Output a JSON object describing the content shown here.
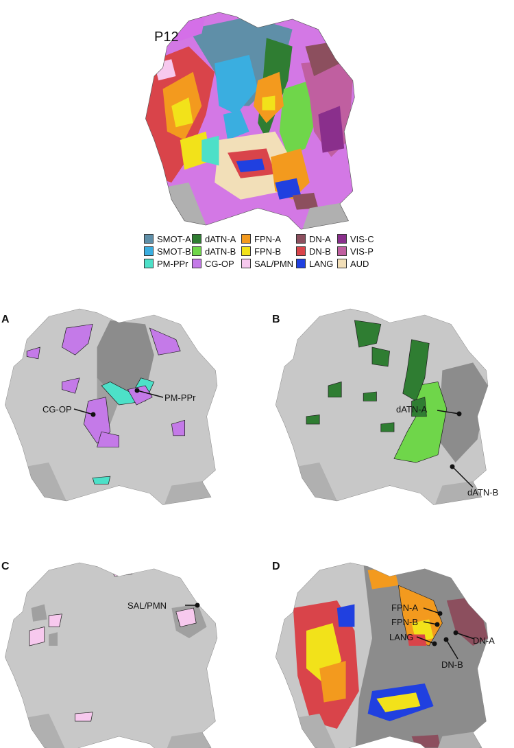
{
  "top_label": "P12",
  "panels": {
    "A": {
      "letter": "A",
      "labels": [
        "PM-PPr",
        "CG-OP"
      ]
    },
    "B": {
      "letter": "B",
      "labels": [
        "dATN-A",
        "dATN-B"
      ]
    },
    "C": {
      "letter": "C",
      "labels": [
        "SAL/PMN"
      ]
    },
    "D": {
      "letter": "D",
      "labels": [
        "FPN-A",
        "FPN-B",
        "LANG",
        "DN-A",
        "DN-B"
      ]
    }
  },
  "legend": [
    {
      "label": "SMOT-A",
      "color": "#5f8fa8"
    },
    {
      "label": "SMOT-B",
      "color": "#3aaee0"
    },
    {
      "label": "PM-PPr",
      "color": "#4de0c8"
    },
    {
      "label": "dATN-A",
      "color": "#2f7d32"
    },
    {
      "label": "dATN-B",
      "color": "#6fd64a"
    },
    {
      "label": "CG-OP",
      "color": "#c47ae8"
    },
    {
      "label": "FPN-A",
      "color": "#f39a1e"
    },
    {
      "label": "FPN-B",
      "color": "#f2e21a"
    },
    {
      "label": "SAL/PMN",
      "color": "#f7c9ee"
    },
    {
      "label": "DN-A",
      "color": "#8c4f5e"
    },
    {
      "label": "DN-B",
      "color": "#d9444a"
    },
    {
      "label": "LANG",
      "color": "#2040e0"
    },
    {
      "label": "VIS-C",
      "color": "#8a2f8c"
    },
    {
      "label": "VIS-P",
      "color": "#c05fa0"
    },
    {
      "label": "AUD",
      "color": "#f2dfb8"
    }
  ],
  "colors": {
    "cortex": "#c8c8c8",
    "medial": "#b0b0b0",
    "dark_region": "#8c8c8c"
  }
}
